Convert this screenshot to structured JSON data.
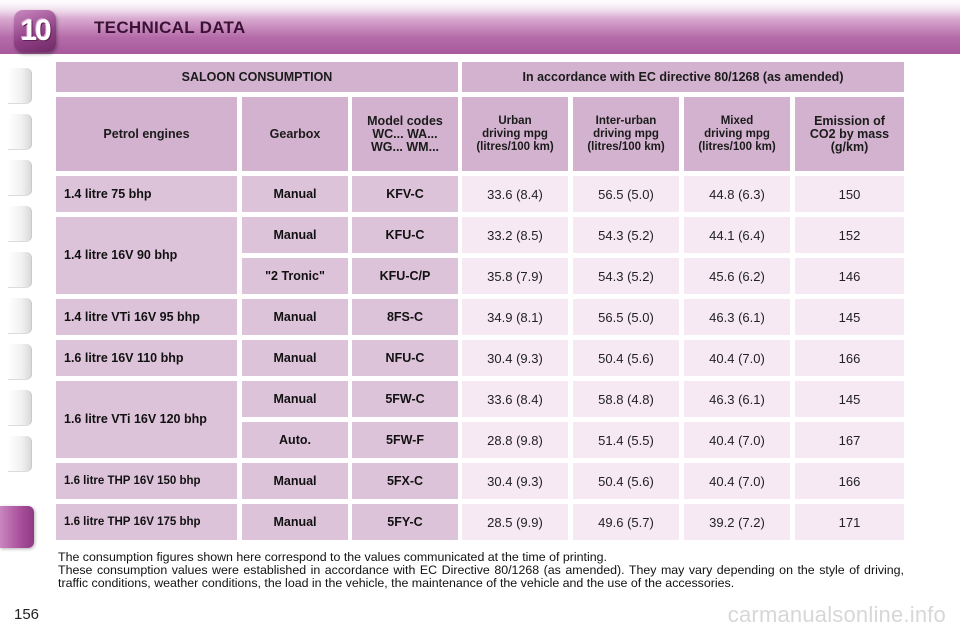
{
  "header": {
    "chapter_number": "10",
    "title": "TECHNICAL DATA"
  },
  "table": {
    "title": "SALOON CONSUMPTION",
    "directive": "In accordance with EC directive 80/1268 (as amended)",
    "columns": {
      "engine": "Petrol engines",
      "gearbox": "Gearbox",
      "model_codes": [
        "Model codes",
        "WC... WA...",
        "WG... WM..."
      ],
      "urban": [
        "Urban",
        "driving mpg",
        "(litres/100 km)"
      ],
      "interurban": [
        "Inter-urban",
        "driving mpg",
        "(litres/100 km)"
      ],
      "mixed": [
        "Mixed",
        "driving mpg",
        "(litres/100 km)"
      ],
      "emission": [
        "Emission of",
        "CO2 by mass",
        "(g/km)"
      ]
    },
    "rows": [
      {
        "engine": "1.4 litre 75 bhp",
        "gearbox": "Manual",
        "code": "KFV-C",
        "urban": "33.6 (8.4)",
        "interurban": "56.5 (5.0)",
        "mixed": "44.8 (6.3)",
        "co2": "150"
      },
      {
        "engine": "1.4 litre 16V 90 bhp",
        "gearbox": "Manual",
        "code": "KFU-C",
        "urban": "33.2 (8.5)",
        "interurban": "54.3 (5.2)",
        "mixed": "44.1 (6.4)",
        "co2": "152"
      },
      {
        "engine": "",
        "gearbox": "\"2 Tronic\"",
        "code": "KFU-C/P",
        "urban": "35.8 (7.9)",
        "interurban": "54.3 (5.2)",
        "mixed": "45.6 (6.2)",
        "co2": "146"
      },
      {
        "engine": "1.4 litre VTi 16V 95 bhp",
        "gearbox": "Manual",
        "code": "8FS-C",
        "urban": "34.9 (8.1)",
        "interurban": "56.5 (5.0)",
        "mixed": "46.3 (6.1)",
        "co2": "145"
      },
      {
        "engine": "1.6 litre 16V 110 bhp",
        "gearbox": "Manual",
        "code": "NFU-C",
        "urban": "30.4 (9.3)",
        "interurban": "50.4 (5.6)",
        "mixed": "40.4 (7.0)",
        "co2": "166"
      },
      {
        "engine": "1.6 litre VTi 16V 120 bhp",
        "gearbox": "Manual",
        "code": "5FW-C",
        "urban": "33.6 (8.4)",
        "interurban": "58.8 (4.8)",
        "mixed": "46.3 (6.1)",
        "co2": "145"
      },
      {
        "engine": "",
        "gearbox": "Auto.",
        "code": "5FW-F",
        "urban": "28.8 (9.8)",
        "interurban": "51.4 (5.5)",
        "mixed": "40.4 (7.0)",
        "co2": "167"
      },
      {
        "engine": "1.6 litre THP 16V 150 bhp",
        "gearbox": "Manual",
        "code": "5FX-C",
        "urban": "30.4 (9.3)",
        "interurban": "50.4 (5.6)",
        "mixed": "40.4 (7.0)",
        "co2": "166"
      },
      {
        "engine": "1.6 litre THP 16V 175 bhp",
        "gearbox": "Manual",
        "code": "5FY-C",
        "urban": "28.5 (9.9)",
        "interurban": "49.6 (5.7)",
        "mixed": "39.2 (7.2)",
        "co2": "171"
      }
    ]
  },
  "footnote": {
    "line1": "The consumption figures shown here correspond to the values communicated at the time of printing.",
    "line2": "These consumption values were established in accordance with EC Directive 80/1268 (as amended). They may vary depending on the style of driving, traffic conditions, weather conditions, the load in the vehicle, the maintenance of the vehicle and the use of the accessories."
  },
  "page_number": "156",
  "watermark": "carmanualsonline.info",
  "colors": {
    "header_accent": "#a85a9c",
    "header_cell": "#d2b2ce",
    "label_cell": "#ddc3da",
    "value_cell": "#f6e9f4"
  }
}
